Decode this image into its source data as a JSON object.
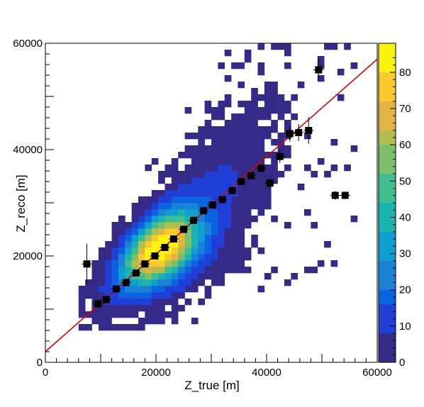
{
  "chart_data": {
    "type": "heatmap",
    "xlabel": "Z_true [m]",
    "ylabel": "Z_reco [m]",
    "xlim": [
      0,
      60000
    ],
    "ylim": [
      0,
      60000
    ],
    "x_ticks": [
      "0",
      "20000",
      "40000",
      "60000"
    ],
    "y_ticks": [
      "0",
      "20000",
      "40000",
      "60000"
    ],
    "colorbar": {
      "range": [
        0,
        88
      ],
      "ticks": [
        "0",
        "10",
        "20",
        "30",
        "40",
        "50",
        "60",
        "70",
        "80"
      ],
      "palette": [
        "#352a87",
        "#1f3fd6",
        "#0a64e0",
        "#1a82d6",
        "#0e9fd0",
        "#1ab3b0",
        "#3fbf8f",
        "#7bc06a",
        "#b1bd4f",
        "#e0b540",
        "#fbc82e",
        "#f9f30f"
      ]
    },
    "density_band": {
      "description_free": true,
      "density_peak": [
        20000,
        22000
      ],
      "bin_size": 1200
    },
    "profile_points": [
      {
        "x": 7500,
        "y": 18500,
        "ey": 3800
      },
      {
        "x": 9500,
        "y": 11000,
        "ey": 600
      },
      {
        "x": 11000,
        "y": 11800,
        "ey": 500
      },
      {
        "x": 12800,
        "y": 13800,
        "ey": 400
      },
      {
        "x": 14600,
        "y": 15000,
        "ey": 400
      },
      {
        "x": 16400,
        "y": 16800,
        "ey": 400
      },
      {
        "x": 18000,
        "y": 18500,
        "ey": 400
      },
      {
        "x": 19800,
        "y": 20000,
        "ey": 400
      },
      {
        "x": 21600,
        "y": 21600,
        "ey": 400
      },
      {
        "x": 23200,
        "y": 23200,
        "ey": 400
      },
      {
        "x": 25000,
        "y": 25000,
        "ey": 400
      },
      {
        "x": 26800,
        "y": 26700,
        "ey": 400
      },
      {
        "x": 28600,
        "y": 28500,
        "ey": 400
      },
      {
        "x": 30200,
        "y": 29600,
        "ey": 400
      },
      {
        "x": 32000,
        "y": 30600,
        "ey": 500
      },
      {
        "x": 33800,
        "y": 32300,
        "ey": 500
      },
      {
        "x": 35400,
        "y": 34000,
        "ey": 500
      },
      {
        "x": 37200,
        "y": 35100,
        "ey": 600
      },
      {
        "x": 39000,
        "y": 36500,
        "ey": 700
      },
      {
        "x": 40600,
        "y": 33700,
        "ey": 900
      },
      {
        "x": 42400,
        "y": 38700,
        "ey": 1200
      },
      {
        "x": 44200,
        "y": 43000,
        "ey": 1500
      },
      {
        "x": 45800,
        "y": 43200,
        "ey": 1600
      },
      {
        "x": 47600,
        "y": 43600,
        "ey": 2500
      },
      {
        "x": 49400,
        "y": 55000,
        "ey": 2000
      },
      {
        "x": 52400,
        "y": 31400,
        "ey": 800
      },
      {
        "x": 54200,
        "y": 31400,
        "ey": 700
      }
    ],
    "fit_line": {
      "color": "#e00000",
      "x": [
        0,
        60000
      ],
      "y": [
        2000,
        57000
      ]
    }
  }
}
